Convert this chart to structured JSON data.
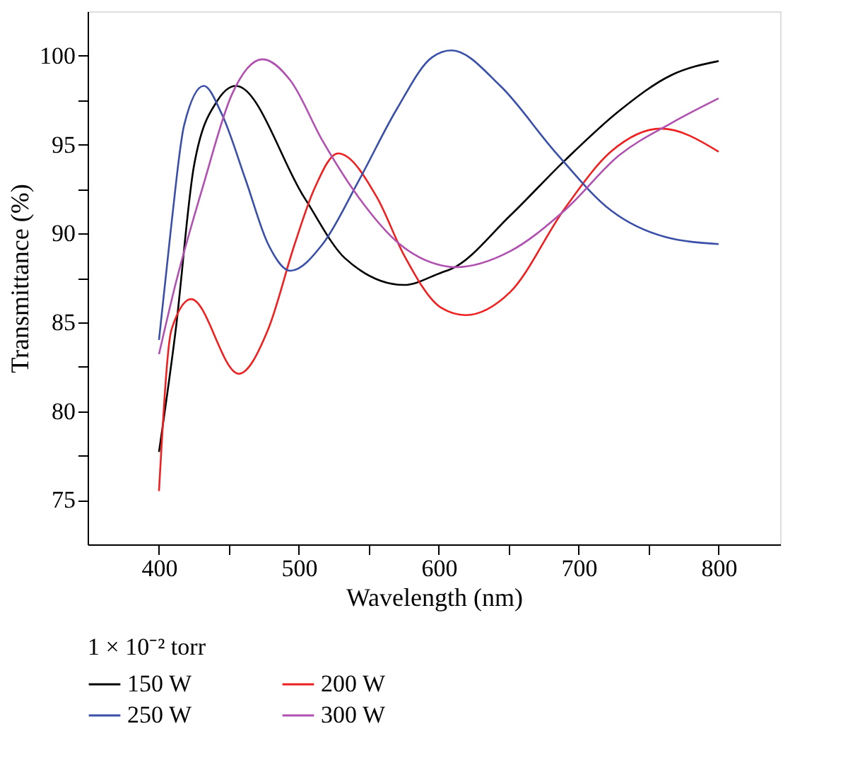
{
  "chart_data": {
    "type": "line",
    "xlabel": "Wavelength (nm)",
    "ylabel": "Transmittance (%)",
    "legend_title": "1 × 10⁻² torr",
    "legend": "bottom",
    "grid": false,
    "marker": "none",
    "line_style": "solid",
    "xlim": [
      349,
      844
    ],
    "ylim": [
      72.5,
      102.5
    ],
    "xticks": [
      400,
      {
        "value": 450,
        "label": null
      },
      500,
      {
        "value": 550,
        "label": null
      },
      600,
      {
        "value": 650,
        "label": null
      },
      700,
      {
        "value": 750,
        "label": null
      },
      800
    ],
    "yticks": [
      75,
      {
        "value": 77.5,
        "label": null
      },
      80,
      {
        "value": 82.5,
        "label": null
      },
      85,
      {
        "value": 87.5,
        "label": null
      },
      90,
      {
        "value": 92.5,
        "label": null
      },
      95,
      {
        "value": 97.5,
        "label": null
      },
      100
    ],
    "series": [
      {
        "name": "150 W",
        "color": "#000000",
        "x": [
          400,
          412,
          425,
          442,
          455,
          504,
          533,
          575,
          602,
          609,
          651,
          690,
          729,
          766,
          800
        ],
        "values": [
          77.7,
          84.6,
          93.8,
          97.5,
          98.3,
          92.0,
          88.6,
          87.1,
          87.8,
          88.0,
          91.0,
          94.1,
          96.9,
          98.9,
          99.7
        ]
      },
      {
        "name": "200 W",
        "color": "#ee2020",
        "x": [
          400,
          409,
          423,
          457,
          478,
          497,
          511,
          528,
          556,
          575,
          602,
          619,
          651,
          690,
          723,
          759,
          800
        ],
        "values": [
          75.5,
          84.6,
          86.3,
          82.1,
          84.6,
          89.4,
          92.5,
          94.5,
          92.0,
          88.8,
          85.8,
          85.4,
          86.7,
          91.4,
          94.6,
          95.9,
          94.6
        ]
      },
      {
        "name": "250 W",
        "color": "#3a4fa8",
        "x": [
          400,
          409,
          418,
          432,
          445,
          462,
          478,
          494,
          517,
          543,
          570,
          595,
          609,
          644,
          683,
          723,
          762,
          800
        ],
        "values": [
          84.0,
          90.6,
          96.1,
          98.3,
          96.7,
          93.0,
          89.4,
          87.9,
          89.4,
          93.0,
          97.0,
          99.9,
          100.3,
          98.3,
          94.6,
          91.3,
          89.8,
          89.4
        ]
      },
      {
        "name": "300 W",
        "color": "#b050b0",
        "x": [
          400,
          412,
          432,
          452,
          474,
          494,
          517,
          543,
          572,
          602,
          612,
          651,
          690,
          729,
          766,
          800
        ],
        "values": [
          83.2,
          87.2,
          92.8,
          97.8,
          99.8,
          98.6,
          95.2,
          92.0,
          89.4,
          88.2,
          88.1,
          89.0,
          91.3,
          94.4,
          96.2,
          97.6
        ]
      }
    ]
  }
}
